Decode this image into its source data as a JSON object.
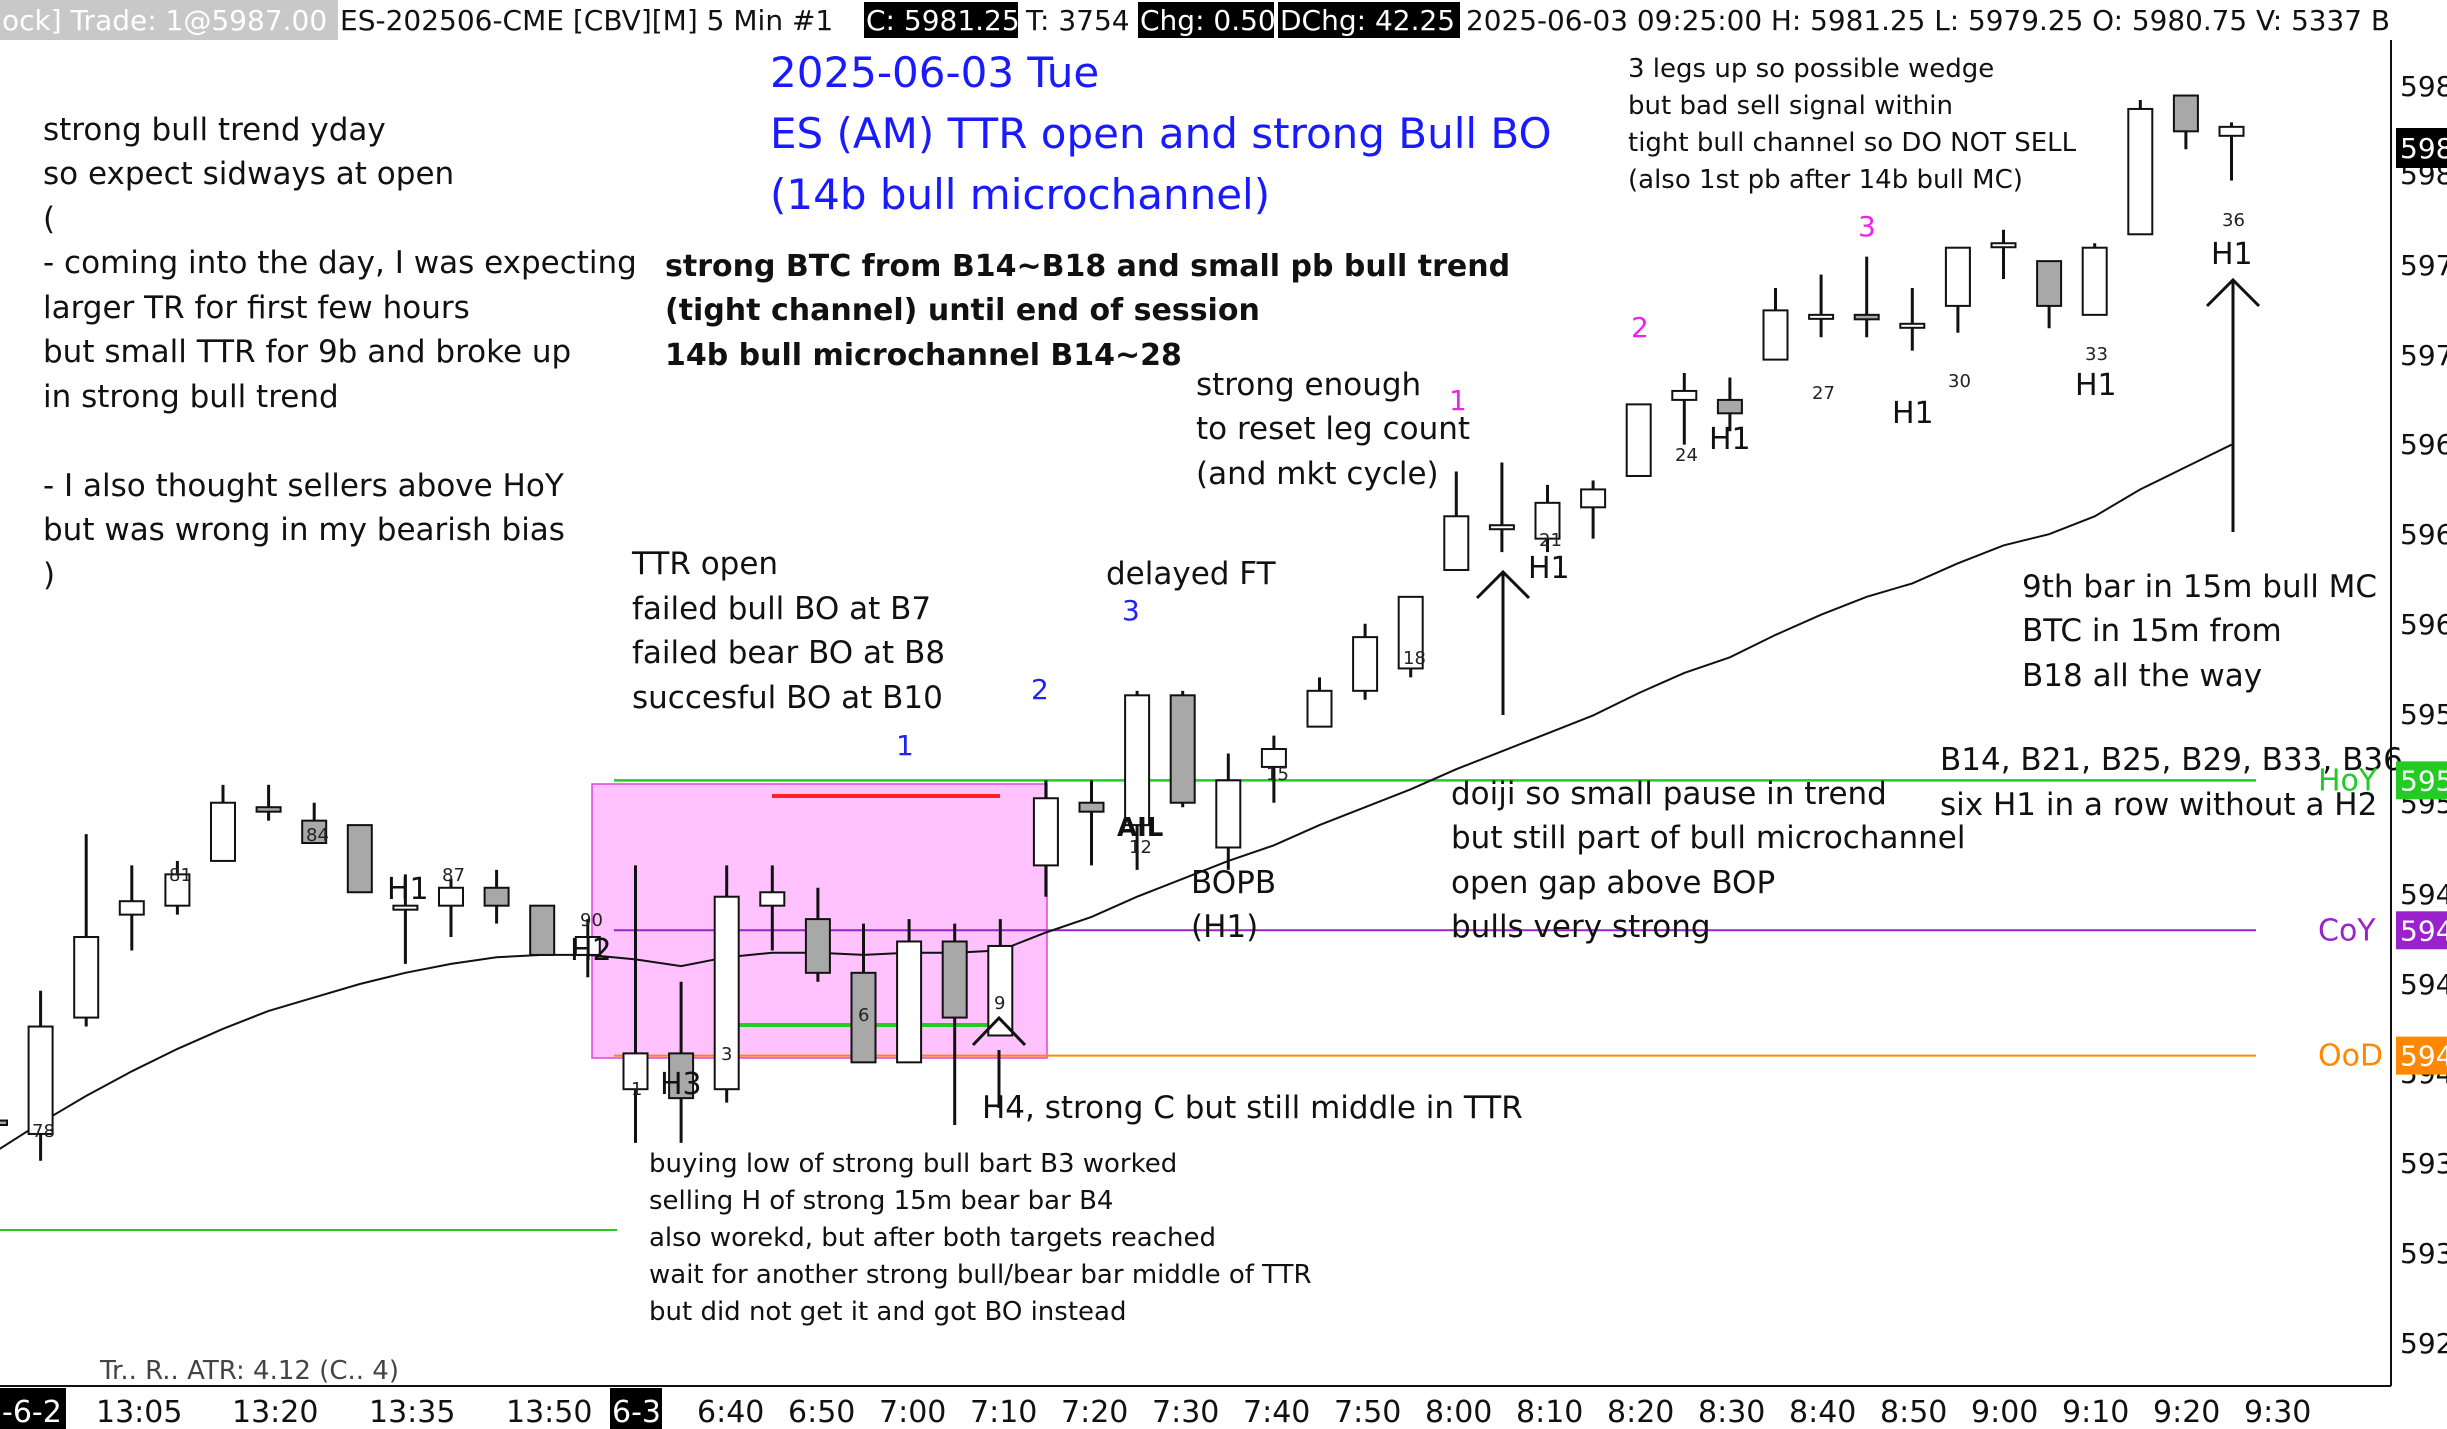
{
  "header": {
    "prefix": "ock] Trade: 1@5987.00",
    "instrument": "ES-202506-CME [CBV][M]  5 Min  #1",
    "close": "C: 5981.25",
    "ticks": "T: 3754",
    "chg": "Chg: 0.50",
    "dchg": "DChg: 42.25",
    "rest": "2025-06-03 09:25:00 H: 5981.25  L: 5979.25  O: 5980.75  V: 5337  B"
  },
  "title_lines": [
    "2025-06-03 Tue",
    "ES (AM) TTR open and strong Bull BO",
    "(14b bull microchannel)"
  ],
  "notes": {
    "left_block": [
      "strong bull trend yday",
      "so expect sidways at open",
      "(",
      "- coming into the day, I was expecting",
      "larger TR for first few hours",
      "but small TTR for 9b and broke up",
      "in strong bull trend",
      "",
      "- I also thought sellers above HoY",
      "but was wrong in my bearish bias",
      ")"
    ],
    "btc_block": [
      "strong BTC from B14~B18 and small pb bull trend",
      "(tight channel) until end of session",
      "14b bull microchannel B14~28"
    ],
    "ttr_block": [
      "TTR open",
      "failed bull BO at B7",
      "failed bear BO at B8",
      "succesful BO at B10"
    ],
    "reset_block": [
      "strong enough",
      "to reset leg count",
      "(and mkt cycle)"
    ],
    "delayed": "delayed FT",
    "wedge_block": [
      "3 legs up so possible wedge",
      "but bad sell signal within",
      "tight bull channel so DO NOT SELL",
      "(also 1st pb after 14b bull MC)"
    ],
    "mc_block": [
      "9th bar in 15m bull MC",
      "BTC in 15m from",
      " B18 all the way"
    ],
    "h1_block": [
      "B14, B21, B25, B29, B33, B36",
      "six H1 in a row without a H2"
    ],
    "doji_block": [
      "doiji so small pause in trend",
      "but still part of bull microchannel",
      "open gap above BOP",
      "bulls very strong"
    ],
    "bopb_block": [
      "BOPB",
      "(H1)"
    ],
    "h4": "H4, strong C but still middle in TTR",
    "buying_block": [
      "buying low of strong bull bart B3 worked",
      "selling H of strong 15m bear bar B4",
      "also worekd, but after both targets reached",
      "wait for another strong bull/bear bar middle of TTR",
      "but did not get it and got BO instead"
    ],
    "ail": "AIL"
  },
  "levels": {
    "hoy": {
      "label": "HoY",
      "price": 5955.6,
      "color": "#22cc22",
      "tag": "595"
    },
    "coy": {
      "label": "CoY",
      "price": 5948.9,
      "color": "#9922cc",
      "tag": "594"
    },
    "ood": {
      "label": "OoD",
      "price": 5943.3,
      "color": "#ff8800",
      "tag": "594"
    }
  },
  "last_price_tag": "598",
  "price_axis": [
    "598",
    "598",
    "597",
    "597",
    "596",
    "596",
    "596",
    "595",
    "595",
    "594",
    "594",
    "594",
    "593",
    "593",
    "592"
  ],
  "time_axis": [
    "-6-2",
    "13:05",
    "13:20",
    "13:35",
    "13:50",
    "6-3",
    "6:40",
    "6:50",
    "7:00",
    "7:10",
    "7:20",
    "7:30",
    "7:40",
    "7:50",
    "8:00",
    "8:10",
    "8:20",
    "8:30",
    "8:40",
    "8:50",
    "9:00",
    "9:10",
    "9:20",
    "9:30"
  ],
  "bottom_partial": "Tr..  R..    ATR: 4.12   (C..   4)",
  "chart_data": {
    "type": "candlestick",
    "title": "2025-06-03 Tue ES (AM) TTR open and strong Bull BO (14b bull microchannel)",
    "timeframe": "5 Min",
    "bars": [
      {
        "o": 5940.4,
        "h": 5940.8,
        "l": 5939.8,
        "c": 5940.2
      },
      {
        "o": 5939.8,
        "h": 5946.2,
        "l": 5938.6,
        "c": 5944.6
      },
      {
        "o": 5945.0,
        "h": 5953.2,
        "l": 5944.6,
        "c": 5948.6
      },
      {
        "o": 5949.6,
        "h": 5951.8,
        "l": 5948.0,
        "c": 5950.2
      },
      {
        "o": 5950.0,
        "h": 5952.0,
        "l": 5949.6,
        "c": 5951.4
      },
      {
        "o": 5952.0,
        "h": 5955.4,
        "l": 5952.0,
        "c": 5954.6
      },
      {
        "o": 5954.4,
        "h": 5955.4,
        "l": 5953.8,
        "c": 5954.2
      },
      {
        "o": 5953.8,
        "h": 5954.6,
        "l": 5952.8,
        "c": 5952.8
      },
      {
        "o": 5953.6,
        "h": 5953.6,
        "l": 5950.6,
        "c": 5950.6
      },
      {
        "o": 5950.0,
        "h": 5951.4,
        "l": 5947.4,
        "c": 5950.0
      },
      {
        "o": 5950.0,
        "h": 5951.2,
        "l": 5948.6,
        "c": 5950.8
      },
      {
        "o": 5950.8,
        "h": 5951.6,
        "l": 5949.2,
        "c": 5950.0
      },
      {
        "o": 5950.0,
        "h": 5950.0,
        "l": 5947.8,
        "c": 5947.8
      },
      {
        "o": 5947.8,
        "h": 5949.4,
        "l": 5946.8,
        "c": 5948.6
      },
      {
        "o": 5941.8,
        "h": 5951.8,
        "l": 5939.4,
        "c": 5943.4
      },
      {
        "o": 5943.4,
        "h": 5946.6,
        "l": 5939.4,
        "c": 5941.4
      },
      {
        "o": 5941.8,
        "h": 5951.8,
        "l": 5941.2,
        "c": 5950.4
      },
      {
        "o": 5950.0,
        "h": 5951.8,
        "l": 5948.0,
        "c": 5950.6
      },
      {
        "o": 5949.4,
        "h": 5950.8,
        "l": 5946.6,
        "c": 5947.0
      },
      {
        "o": 5947.0,
        "h": 5949.2,
        "l": 5944.0,
        "c": 5943.0
      },
      {
        "o": 5943.0,
        "h": 5949.4,
        "l": 5943.0,
        "c": 5948.4
      },
      {
        "o": 5948.4,
        "h": 5949.2,
        "l": 5940.2,
        "c": 5945.0
      },
      {
        "o": 5944.2,
        "h": 5949.4,
        "l": 5944.2,
        "c": 5948.2
      },
      {
        "o": 5951.8,
        "h": 5955.6,
        "l": 5950.4,
        "c": 5954.8
      },
      {
        "o": 5954.6,
        "h": 5955.6,
        "l": 5951.8,
        "c": 5954.2
      },
      {
        "o": 5953.6,
        "h": 5959.6,
        "l": 5951.6,
        "c": 5959.4
      },
      {
        "o": 5959.4,
        "h": 5959.6,
        "l": 5954.4,
        "c": 5954.6
      },
      {
        "o": 5952.6,
        "h": 5956.8,
        "l": 5951.6,
        "c": 5955.6
      },
      {
        "o": 5956.2,
        "h": 5957.6,
        "l": 5954.6,
        "c": 5957.0
      },
      {
        "o": 5958.0,
        "h": 5960.2,
        "l": 5958.0,
        "c": 5959.6
      },
      {
        "o": 5959.6,
        "h": 5962.6,
        "l": 5959.2,
        "c": 5962.0
      },
      {
        "o": 5960.6,
        "h": 5963.8,
        "l": 5960.2,
        "c": 5963.8
      },
      {
        "o": 5965.0,
        "h": 5969.4,
        "l": 5965.0,
        "c": 5967.4
      },
      {
        "o": 5967.0,
        "h": 5969.8,
        "l": 5965.8,
        "c": 5967.0
      },
      {
        "o": 5966.4,
        "h": 5968.8,
        "l": 5965.8,
        "c": 5968.0
      },
      {
        "o": 5967.8,
        "h": 5969.0,
        "l": 5966.4,
        "c": 5968.6
      },
      {
        "o": 5969.2,
        "h": 5972.4,
        "l": 5969.2,
        "c": 5972.4
      },
      {
        "o": 5972.6,
        "h": 5973.8,
        "l": 5970.6,
        "c": 5973.0
      },
      {
        "o": 5972.6,
        "h": 5973.6,
        "l": 5971.2,
        "c": 5972.0
      },
      {
        "o": 5974.4,
        "h": 5977.6,
        "l": 5974.4,
        "c": 5976.6
      },
      {
        "o": 5976.4,
        "h": 5978.2,
        "l": 5975.4,
        "c": 5976.4
      },
      {
        "o": 5976.4,
        "h": 5979.0,
        "l": 5975.4,
        "c": 5976.2
      },
      {
        "o": 5976.0,
        "h": 5977.6,
        "l": 5974.8,
        "c": 5976.0
      },
      {
        "o": 5976.8,
        "h": 5979.4,
        "l": 5975.6,
        "c": 5979.4
      },
      {
        "o": 5979.6,
        "h": 5980.2,
        "l": 5978.0,
        "c": 5979.6
      },
      {
        "o": 5978.8,
        "h": 5978.8,
        "l": 5975.8,
        "c": 5976.8
      },
      {
        "o": 5976.4,
        "h": 5979.6,
        "l": 5976.4,
        "c": 5979.4
      },
      {
        "o": 5980.0,
        "h": 5986.0,
        "l": 5980.0,
        "c": 5985.6
      },
      {
        "o": 5986.2,
        "h": 5986.2,
        "l": 5983.8,
        "c": 5984.6
      },
      {
        "o": 5984.4,
        "h": 5985.0,
        "l": 5982.4,
        "c": 5984.8
      }
    ],
    "bar_numbers": [
      "78",
      "81",
      "84",
      "87",
      "90",
      "1",
      "3",
      "6",
      "9",
      "12",
      "15",
      "18",
      "21",
      "24",
      "27",
      "30",
      "33",
      "36"
    ],
    "leg_labels": [
      "1",
      "2",
      "3",
      "1",
      "2",
      "3"
    ],
    "signal_labels": [
      "H1",
      "H2",
      "H3",
      "H1",
      "H1",
      "H1",
      "H1",
      "H1"
    ],
    "ema": [
      5939.0,
      5940.3,
      5941.5,
      5942.6,
      5943.6,
      5944.5,
      5945.3,
      5945.9,
      5946.5,
      5947.0,
      5947.4,
      5947.7,
      5947.8,
      5947.8,
      5947.6,
      5947.3,
      5947.7,
      5947.9,
      5947.9,
      5947.8,
      5947.9,
      5947.9,
      5948.0,
      5948.8,
      5949.5,
      5950.4,
      5951.2,
      5952.0,
      5952.7,
      5953.6,
      5954.4,
      5955.2,
      5956.1,
      5956.9,
      5957.7,
      5958.5,
      5959.5,
      5960.4,
      5961.1,
      5962.1,
      5963.0,
      5963.8,
      5964.4,
      5965.3,
      5966.1,
      5966.6,
      5967.4,
      5968.6,
      5969.6,
      5970.6
    ],
    "price_range": [
      5922,
      5990
    ]
  }
}
